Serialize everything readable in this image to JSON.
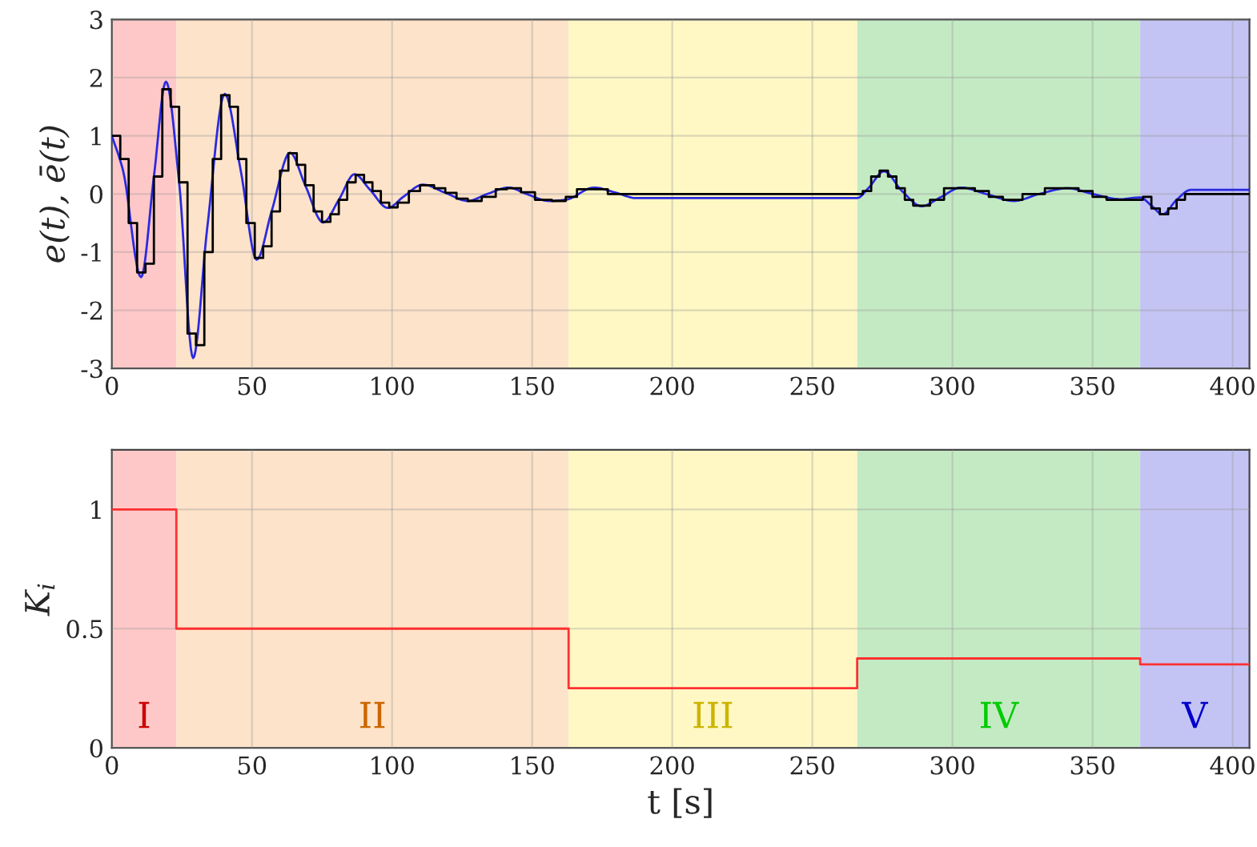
{
  "chart_data": [
    {
      "type": "line",
      "ylabel": "e(t), ē(t)",
      "xlim": [
        0,
        406
      ],
      "ylim": [
        -3,
        3
      ],
      "xticks": [
        0,
        50,
        100,
        150,
        200,
        250,
        300,
        350,
        400
      ],
      "yticks": [
        -3,
        -2,
        -1,
        0,
        1,
        2,
        3
      ],
      "grid": true,
      "legend": false,
      "marker": "none",
      "line_style": "solid",
      "bands": [
        {
          "axis": "x",
          "from": 0,
          "to": 23,
          "color": "#ffc8c8"
        },
        {
          "axis": "x",
          "from": 23,
          "to": 163,
          "color": "#fde3c9"
        },
        {
          "axis": "x",
          "from": 163,
          "to": 266,
          "color": "#fff8c4"
        },
        {
          "axis": "x",
          "from": 266,
          "to": 367,
          "color": "#c4eac4"
        },
        {
          "axis": "x",
          "from": 367,
          "to": 406,
          "color": "#c4c4f4"
        }
      ],
      "series": [
        {
          "color": "#2a2ae0",
          "x": [
            0,
            4,
            10.4,
            15,
            19.3,
            24,
            29,
            34,
            40.3,
            46,
            51.7,
            57,
            63.6,
            69,
            75.4,
            81,
            86.6,
            92,
            98.5,
            104,
            111,
            119,
            127,
            134,
            141.5,
            148,
            156,
            162,
            172,
            180,
            187,
            266,
            270,
            275.6,
            282,
            289,
            296,
            303,
            312,
            322,
            331,
            341,
            350,
            360,
            367,
            371,
            375,
            380,
            385,
            406
          ],
          "values": [
            1,
            0.4,
            -1.43,
            0.3,
            1.93,
            0.2,
            -2.82,
            -0.6,
            1.72,
            0.4,
            -1.13,
            -0.3,
            0.71,
            0.15,
            -0.49,
            -0.1,
            0.34,
            0.08,
            -0.24,
            -0.05,
            0.16,
            0.02,
            -0.12,
            0,
            0.11,
            0,
            -0.12,
            -0.1,
            0.11,
            0.02,
            -0.07,
            -0.07,
            0.1,
            0.39,
            0.05,
            -0.21,
            -0.05,
            0.11,
            0,
            -0.12,
            0,
            0.1,
            0,
            -0.09,
            -0.06,
            -0.2,
            -0.35,
            -0.1,
            0.07,
            0.07
          ]
        },
        {
          "type": "step",
          "color": "#000000",
          "x": [
            0,
            3,
            6,
            9,
            12,
            15,
            18,
            21,
            24,
            27,
            30,
            33,
            36,
            39,
            42,
            45,
            48,
            51,
            54,
            57,
            60,
            63,
            66,
            69,
            72,
            75,
            78,
            81,
            84,
            87,
            90,
            93,
            96,
            99,
            102,
            106,
            110,
            115,
            119,
            123,
            127,
            132,
            137,
            141,
            146,
            151,
            157,
            162,
            166,
            177,
            268,
            271,
            274,
            277,
            280,
            283,
            286,
            292,
            297,
            308,
            313,
            318,
            325,
            333,
            345,
            350,
            355,
            368,
            371,
            374,
            377,
            380,
            383,
            406
          ],
          "values": [
            1,
            0.6,
            -0.5,
            -1.35,
            -1.2,
            0.3,
            1.8,
            1.5,
            0.2,
            -2.4,
            -2.6,
            -1.0,
            0.6,
            1.7,
            1.5,
            0.6,
            -0.5,
            -1.1,
            -0.9,
            -0.3,
            0.4,
            0.7,
            0.5,
            0.15,
            -0.3,
            -0.48,
            -0.35,
            -0.1,
            0.2,
            0.33,
            0.2,
            0.05,
            -0.15,
            -0.23,
            -0.15,
            0.05,
            0.15,
            0.1,
            0.02,
            -0.08,
            -0.12,
            -0.05,
            0.08,
            0.1,
            0.03,
            -0.1,
            -0.12,
            -0.05,
            0.08,
            0,
            0.05,
            0.3,
            0.4,
            0.3,
            0.1,
            -0.1,
            -0.2,
            -0.1,
            0.1,
            0.05,
            -0.05,
            -0.1,
            0,
            0.1,
            0.05,
            -0.05,
            -0.1,
            -0.05,
            -0.25,
            -0.35,
            -0.25,
            -0.1,
            0,
            0
          ]
        }
      ]
    },
    {
      "type": "step",
      "xlabel": "t [s]",
      "ylabel": "K$_{i}$",
      "xlim": [
        0,
        406
      ],
      "ylim": [
        0,
        1.25
      ],
      "xticks": [
        0,
        50,
        100,
        150,
        200,
        250,
        300,
        350,
        400
      ],
      "yticks": [
        0,
        0.5,
        1
      ],
      "grid": true,
      "legend": false,
      "marker": "none",
      "line_style": "solid",
      "bands": [
        {
          "axis": "x",
          "from": 0,
          "to": 23,
          "color": "#ffc8c8",
          "label": "I"
        },
        {
          "axis": "x",
          "from": 23,
          "to": 163,
          "color": "#fde3c9",
          "label": "II"
        },
        {
          "axis": "x",
          "from": 163,
          "to": 266,
          "color": "#fff8c4",
          "label": "III"
        },
        {
          "axis": "x",
          "from": 266,
          "to": 367,
          "color": "#c4eac4",
          "label": "IV"
        },
        {
          "axis": "x",
          "from": 367,
          "to": 406,
          "color": "#c4c4f4",
          "label": "V"
        }
      ],
      "series": [
        {
          "color": "#ff3030",
          "x": [
            0,
            23,
            163,
            266,
            367,
            406
          ],
          "values": [
            1,
            0.5,
            0.25,
            0.375,
            0.35,
            0.35
          ]
        }
      ]
    }
  ]
}
